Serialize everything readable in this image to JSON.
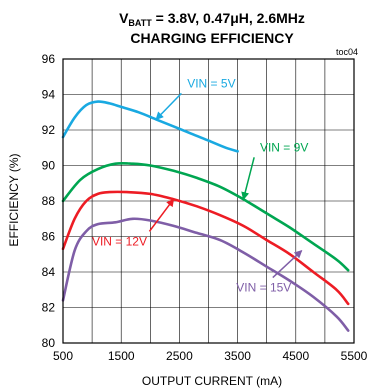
{
  "chart_data": {
    "type": "line",
    "title_main": "V",
    "title_sub": "BATT",
    "title_rest": " = 3.8V, 0.47μH, 2.6MHz",
    "title_line2": "CHARGING EFFICIENCY",
    "figure_id": "toc04",
    "xlabel": "OUTPUT CURRENT (mA)",
    "ylabel": "EFFICIENCY (%)",
    "xlim": [
      500,
      5500
    ],
    "ylim": [
      80,
      96
    ],
    "x_ticks": [
      500,
      1500,
      2500,
      3500,
      4500,
      5500
    ],
    "y_ticks": [
      80,
      82,
      84,
      86,
      88,
      90,
      92,
      94,
      96
    ],
    "grid": true,
    "series": [
      {
        "name": "VIN = 5V",
        "color": "#19a9e1",
        "x": [
          500,
          700,
          900,
          1100,
          1300,
          1500,
          1800,
          2100,
          2400,
          2700,
          3000,
          3300,
          3500
        ],
        "y": [
          91.6,
          92.7,
          93.4,
          93.6,
          93.5,
          93.3,
          93.0,
          92.6,
          92.2,
          91.8,
          91.4,
          91.0,
          90.8
        ]
      },
      {
        "name": "VIN = 9V",
        "color": "#00a651",
        "x": [
          500,
          800,
          1100,
          1400,
          1700,
          2000,
          2400,
          2800,
          3200,
          3600,
          4000,
          4400,
          4800,
          5200,
          5400
        ],
        "y": [
          88.0,
          89.2,
          89.8,
          90.1,
          90.1,
          90.0,
          89.7,
          89.3,
          88.8,
          88.1,
          87.3,
          86.5,
          85.6,
          84.7,
          84.1
        ]
      },
      {
        "name": "VIN = 12V",
        "color": "#ed1c24",
        "x": [
          500,
          700,
          900,
          1100,
          1300,
          1600,
          2000,
          2400,
          2800,
          3200,
          3600,
          4000,
          4400,
          4800,
          5200,
          5400
        ],
        "y": [
          85.3,
          87.0,
          88.0,
          88.4,
          88.5,
          88.5,
          88.4,
          88.1,
          87.7,
          87.2,
          86.6,
          85.8,
          85.0,
          84.0,
          83.0,
          82.2
        ]
      },
      {
        "name": "VIN = 15V",
        "color": "#7f5ea7",
        "x": [
          500,
          700,
          900,
          1100,
          1400,
          1700,
          2000,
          2400,
          2800,
          3200,
          3600,
          4000,
          4400,
          4800,
          5200,
          5400
        ],
        "y": [
          82.4,
          85.2,
          86.3,
          86.7,
          86.8,
          87.0,
          86.9,
          86.6,
          86.2,
          85.8,
          85.1,
          84.3,
          83.5,
          82.6,
          81.5,
          80.7
        ]
      }
    ],
    "labels": [
      {
        "series": 0,
        "text": "VIN = 5V",
        "at": [
          3050,
          94.4
        ],
        "arrow_to": [
          2100,
          92.6
        ]
      },
      {
        "series": 1,
        "text": "VIN = 9V",
        "at": [
          4300,
          90.8
        ],
        "arrow_to": [
          3600,
          88.1
        ]
      },
      {
        "series": 2,
        "text": "VIN = 12V",
        "at": [
          1470,
          85.5
        ],
        "arrow_to": [
          2400,
          88.1
        ]
      },
      {
        "series": 3,
        "text": "VIN = 15V",
        "at": [
          3950,
          82.9
        ],
        "arrow_to": [
          4600,
          85.2
        ]
      }
    ]
  }
}
